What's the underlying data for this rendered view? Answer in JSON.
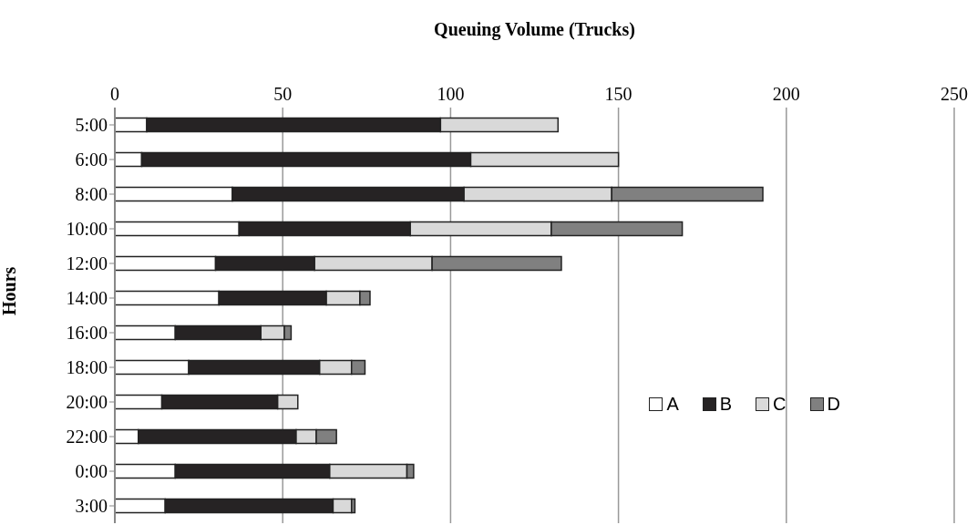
{
  "chart_data": {
    "type": "bar",
    "orientation": "horizontal",
    "stacked": true,
    "xlabel": "Queuing Volume (Trucks)",
    "ylabel": "Hours",
    "categories": [
      "5:00",
      "6:00",
      "8:00",
      "10:00",
      "12:00",
      "14:00",
      "16:00",
      "18:00",
      "20:00",
      "22:00",
      "0:00",
      "3:00"
    ],
    "series": [
      {
        "name": "A",
        "color": "#ffffff",
        "values": [
          9.5,
          8,
          35,
          37,
          30,
          31,
          18,
          22,
          14,
          7,
          18,
          15
        ]
      },
      {
        "name": "B",
        "color": "#262324",
        "values": [
          87.5,
          98,
          69,
          51,
          29.5,
          32,
          25.5,
          39,
          34.5,
          47,
          46,
          50
        ]
      },
      {
        "name": "C",
        "color": "#d9d9d9",
        "values": [
          35,
          44,
          44,
          42,
          35,
          10,
          7,
          9.5,
          6,
          6,
          23,
          5.5
        ]
      },
      {
        "name": "D",
        "color": "#808080",
        "values": [
          null,
          null,
          45,
          39,
          38.5,
          3,
          2,
          4,
          null,
          6,
          2,
          1
        ]
      }
    ],
    "xlim": [
      0,
      250
    ],
    "xticks": [
      0,
      50,
      100,
      150,
      200,
      250
    ],
    "grid": "x",
    "legend": "right"
  }
}
